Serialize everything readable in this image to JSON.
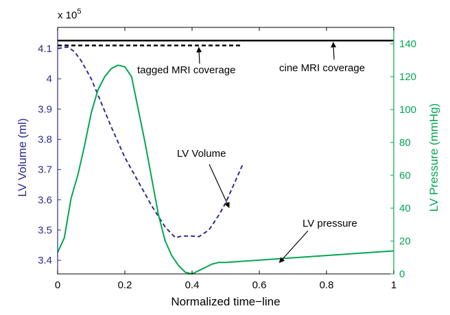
{
  "chart_data": {
    "type": "line",
    "xlabel": "Normalized time−line",
    "ylabel_left": "LV Volume (ml)",
    "ylabel_right": "LV Pressure (mmHg)",
    "left_multiplier": "x 10",
    "left_multiplier_exp": "5",
    "xlim": [
      0,
      1
    ],
    "ylim_left": [
      3.355,
      4.17
    ],
    "ylim_right": [
      0,
      150
    ],
    "x_ticks": [
      0,
      0.2,
      0.4,
      0.6,
      0.8,
      1
    ],
    "x_tick_labels": [
      "0",
      "0.2",
      "0.4",
      "0.6",
      "0.8",
      "1"
    ],
    "left_ticks": [
      3.4,
      3.5,
      3.6,
      3.7,
      3.8,
      3.9,
      4,
      4.1
    ],
    "left_tick_labels": [
      "3.4",
      "3.5",
      "3.6",
      "3.7",
      "3.8",
      "3.9",
      "4",
      "4.1"
    ],
    "right_ticks": [
      0,
      20,
      40,
      60,
      80,
      100,
      120,
      140
    ],
    "right_tick_labels": [
      "0",
      "20",
      "40",
      "60",
      "80",
      "100",
      "120",
      "140"
    ],
    "colors": {
      "volume": "#2b2b8c",
      "pressure": "#00a651",
      "coverage": "#000000"
    },
    "series": [
      {
        "name": "LV Volume",
        "axis": "left",
        "style": "dashed",
        "x": [
          0,
          0.03,
          0.05,
          0.07,
          0.1,
          0.13,
          0.16,
          0.2,
          0.24,
          0.28,
          0.32,
          0.35,
          0.37,
          0.4,
          0.42,
          0.45,
          0.48,
          0.5,
          0.52,
          0.55
        ],
        "y": [
          4.1,
          4.105,
          4.09,
          4.06,
          4.0,
          3.92,
          3.84,
          3.74,
          3.66,
          3.58,
          3.51,
          3.475,
          3.48,
          3.48,
          3.478,
          3.5,
          3.55,
          3.59,
          3.64,
          3.715
        ]
      },
      {
        "name": "LV pressure",
        "axis": "right",
        "style": "solid",
        "x": [
          0,
          0.02,
          0.04,
          0.06,
          0.08,
          0.1,
          0.12,
          0.14,
          0.16,
          0.18,
          0.2,
          0.22,
          0.24,
          0.26,
          0.28,
          0.3,
          0.32,
          0.34,
          0.36,
          0.38,
          0.4,
          0.42,
          0.44,
          0.46,
          0.48,
          0.5,
          1.0
        ],
        "y": [
          13,
          22,
          46,
          60,
          78,
          98,
          112,
          120,
          125,
          127,
          126,
          120,
          100,
          80,
          58,
          36,
          20,
          11,
          5,
          1,
          0,
          2,
          4,
          6,
          7,
          7,
          14
        ]
      }
    ],
    "coverage_lines": [
      {
        "label": "tagged MRI coverage",
        "style": "dashed",
        "x": [
          0,
          0.55
        ],
        "y_right": 139
      },
      {
        "label": "cine MRI coverage",
        "style": "solid",
        "x": [
          0,
          1
        ],
        "y_right": 142
      }
    ],
    "annotations": [
      {
        "text": "tagged MRI coverage",
        "target_x": 0.42,
        "target_y_right": 139
      },
      {
        "text": "cine MRI coverage",
        "target_x": 0.82,
        "target_y_right": 142
      },
      {
        "text": "LV Volume",
        "target_x": 0.51,
        "target_y_left": 3.575
      },
      {
        "text": "LV pressure",
        "target_x": 0.66,
        "target_y_right": 7
      }
    ]
  }
}
